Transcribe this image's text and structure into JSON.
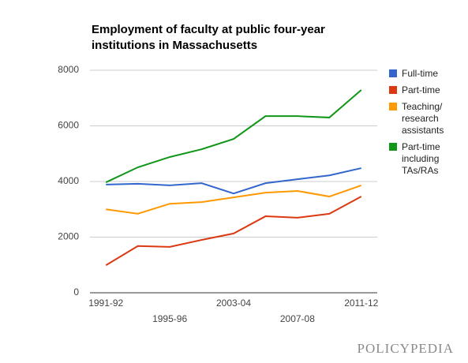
{
  "chart_data": {
    "type": "line",
    "title": "Employment of faculty at public four-year institutions in Massachusetts",
    "categories": [
      "1991-92",
      null,
      "1995-96",
      null,
      "2003-04",
      null,
      "2007-08",
      null,
      "2011-12"
    ],
    "series": [
      {
        "name": "Full-time",
        "color": "#3366cc",
        "values": [
          3890,
          3920,
          3860,
          3940,
          3570,
          3940,
          4080,
          4220,
          4480
        ]
      },
      {
        "name": "Part-time",
        "color": "#dc3912",
        "values": [
          990,
          1680,
          1650,
          1900,
          2130,
          2750,
          2700,
          2840,
          3460
        ]
      },
      {
        "name": "Teaching/ research assistants",
        "color": "#ff9900",
        "values": [
          3000,
          2840,
          3200,
          3260,
          3430,
          3600,
          3660,
          3460,
          3860
        ]
      },
      {
        "name": "Part-time including TAs/RAs",
        "color": "#109618",
        "values": [
          3970,
          4510,
          4880,
          5160,
          5530,
          6350,
          6350,
          6300,
          7290
        ]
      }
    ],
    "ylim": [
      0,
      8000
    ],
    "yticks": [
      0,
      2000,
      4000,
      6000,
      8000
    ],
    "grid": true,
    "legend": "right"
  },
  "logo": "POLICYPEDIA"
}
